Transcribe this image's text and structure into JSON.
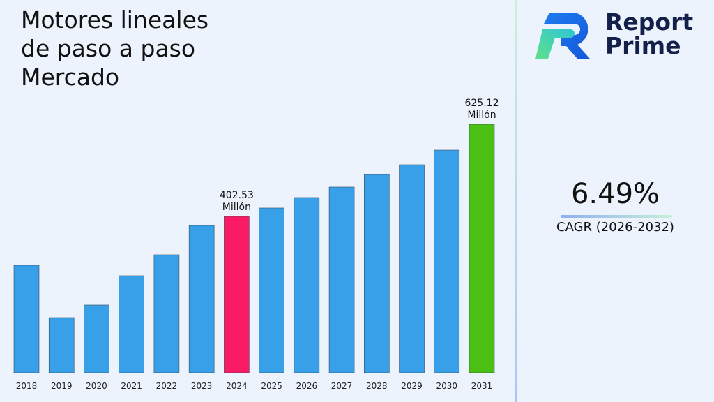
{
  "title": "Motores lineales\nde paso a paso\nMercado",
  "logo": {
    "text": "Report\nPrime"
  },
  "cagr": {
    "value": "6.49%",
    "label": "CAGR (2026-2032)"
  },
  "chart_data": {
    "type": "bar",
    "categories": [
      "2018",
      "2019",
      "2020",
      "2021",
      "2022",
      "2023",
      "2024",
      "2025",
      "2026",
      "2027",
      "2028",
      "2029",
      "2030",
      "2031"
    ],
    "values": [
      284.5,
      158.0,
      188.4,
      259.2,
      309.8,
      380.6,
      402.53,
      422.8,
      448.1,
      473.4,
      503.7,
      527.3,
      562.7,
      625.12
    ],
    "data_labels": {
      "6": "402.53\nMillón",
      "13": "625.12\nMillón"
    },
    "colors": {
      "default": "#38a0e8",
      "highlight_2024": "#fb1a66",
      "highlight_2031": "#4cbf14"
    },
    "grid": false
  }
}
